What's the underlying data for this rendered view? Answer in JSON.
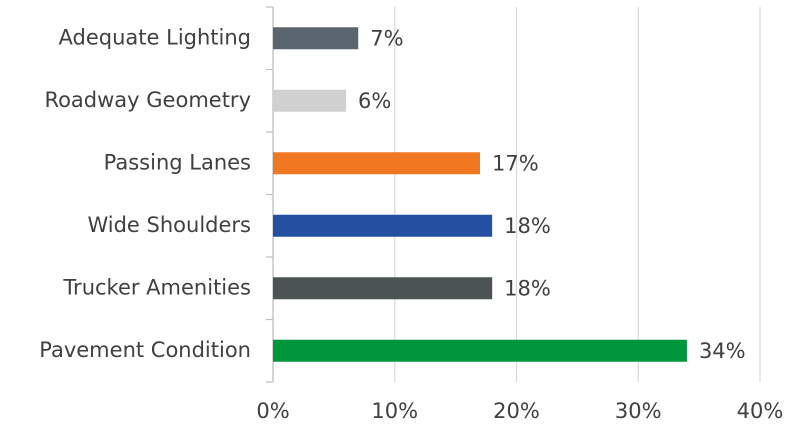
{
  "chart_data": {
    "type": "barh",
    "categories": [
      "Adequate Lighting",
      "Roadway Geometry",
      "Passing Lanes",
      "Wide Shoulders",
      "Trucker Amenities",
      "Pavement Condition"
    ],
    "values": [
      7,
      6,
      17,
      18,
      18,
      34
    ],
    "value_labels": [
      "7%",
      "6%",
      "17%",
      "18%",
      "18%",
      "34%"
    ],
    "colors": [
      "#5b6570",
      "#d0d0d0",
      "#f07820",
      "#2350a0",
      "#4b5353",
      "#00963c"
    ],
    "xlim": [
      0,
      40
    ],
    "xticks": [
      {
        "value": 0,
        "label": "0%"
      },
      {
        "value": 10,
        "label": "10%"
      },
      {
        "value": 20,
        "label": "20%"
      },
      {
        "value": 30,
        "label": "30%"
      },
      {
        "value": 40,
        "label": "40%"
      }
    ],
    "grid": true
  }
}
